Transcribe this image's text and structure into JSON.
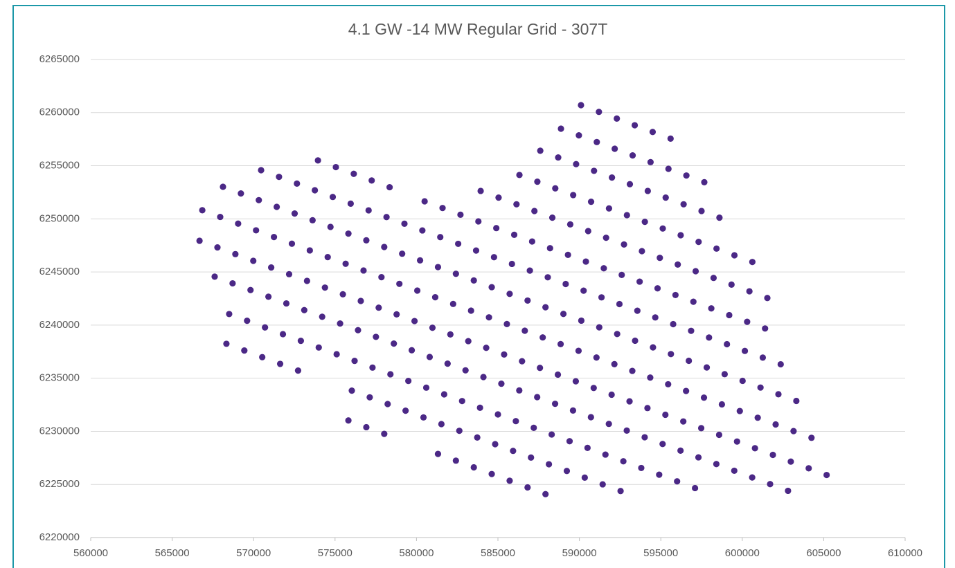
{
  "chart_data": {
    "type": "scatter",
    "title": "4.1 GW -14 MW Regular Grid - 307T",
    "color": "#4b2886",
    "grid": true,
    "xlim": [
      560000,
      610000
    ],
    "xticks": [
      560000,
      565000,
      570000,
      575000,
      580000,
      585000,
      590000,
      595000,
      600000,
      605000,
      610000
    ],
    "ylim": [
      6220000,
      6265000
    ],
    "yticks": [
      6220000,
      6225000,
      6230000,
      6235000,
      6240000,
      6245000,
      6250000,
      6255000,
      6260000,
      6265000
    ],
    "x": [
      590100,
      591200,
      592300,
      593400,
      594500,
      595600,
      588870,
      589970,
      591070,
      592170,
      593270,
      594370,
      595470,
      596570,
      597670,
      587600,
      588700,
      589800,
      590900,
      592000,
      593100,
      594200,
      595300,
      596400,
      597500,
      598600,
      586320,
      587420,
      588520,
      589620,
      590720,
      591820,
      592920,
      594020,
      595120,
      596220,
      597320,
      598420,
      599520,
      600620,
      583940,
      585040,
      586140,
      587240,
      588340,
      589440,
      590540,
      591640,
      592740,
      593840,
      594940,
      596040,
      597140,
      598240,
      599340,
      600440,
      601540,
      580500,
      581600,
      582700,
      583800,
      584900,
      586000,
      587100,
      588200,
      589300,
      590400,
      591500,
      592600,
      593700,
      594800,
      595900,
      597000,
      598100,
      599200,
      600300,
      601400,
      573950,
      575050,
      576150,
      577250,
      578350,
      570460,
      571560,
      572660,
      573760,
      574860,
      575960,
      577060,
      578160,
      579260,
      580360,
      581460,
      582560,
      583660,
      584760,
      585860,
      586960,
      588060,
      589160,
      590260,
      591360,
      592460,
      593560,
      594660,
      595760,
      596860,
      597960,
      599060,
      600160,
      601260,
      602360,
      568120,
      569220,
      570320,
      571420,
      572520,
      573620,
      574720,
      575820,
      576920,
      578020,
      579120,
      580220,
      581320,
      582420,
      583520,
      584620,
      585720,
      586820,
      587920,
      589020,
      590120,
      591220,
      592320,
      593420,
      594520,
      595620,
      596720,
      597820,
      598920,
      600020,
      601120,
      602220,
      603320,
      566850,
      567950,
      569050,
      570150,
      571250,
      572350,
      573450,
      574550,
      575650,
      576750,
      577850,
      578950,
      580050,
      581150,
      582250,
      583350,
      584450,
      585550,
      586650,
      587750,
      588850,
      589950,
      591050,
      592150,
      593250,
      594350,
      595450,
      596550,
      597650,
      598750,
      599850,
      600950,
      602050,
      603150,
      604250,
      566680,
      567780,
      568880,
      569980,
      571080,
      572180,
      573280,
      574380,
      575480,
      576580,
      577680,
      578780,
      579880,
      580980,
      582080,
      583180,
      584280,
      585380,
      586480,
      587580,
      588680,
      589780,
      590880,
      591980,
      593080,
      594180,
      595280,
      596380,
      597480,
      598580,
      599680,
      600780,
      601880,
      602980,
      604080,
      605180,
      567610,
      568710,
      569810,
      570910,
      572010,
      573110,
      574210,
      575310,
      576410,
      577510,
      578610,
      579710,
      580810,
      581910,
      583010,
      584110,
      585210,
      586310,
      587410,
      588510,
      589610,
      590710,
      591810,
      592910,
      594010,
      595110,
      596210,
      597310,
      598410,
      599510,
      600610,
      601710,
      602810,
      568500,
      569600,
      570700,
      571800,
      572900,
      574000,
      575100,
      576200,
      577300,
      578400,
      579500,
      580600,
      581700,
      582800,
      583900,
      585000,
      586100,
      587200,
      588300,
      589400,
      590500,
      591600,
      592700,
      593800,
      594900,
      596000,
      597100,
      568330,
      569430,
      570530,
      571630,
      572730,
      576030,
      577130,
      578230,
      579330,
      580430,
      581530,
      582630,
      583730,
      584830,
      585930,
      587030,
      588130,
      589230,
      590330,
      591430,
      592530,
      575820,
      576920,
      578020,
      581320,
      582420,
      583520,
      584620,
      585720,
      586820,
      587920
    ],
    "values": [
      6260700,
      6260070,
      6259440,
      6258810,
      6258180,
      6257550,
      6258490,
      6257860,
      6257230,
      6256600,
      6255970,
      6255340,
      6254710,
      6254080,
      6253450,
      6256410,
      6255780,
      6255150,
      6254520,
      6253890,
      6253260,
      6252630,
      6252000,
      6251370,
      6250740,
      6250110,
      6254130,
      6253500,
      6252870,
      6252240,
      6251610,
      6250980,
      6250350,
      6249720,
      6249090,
      6248460,
      6247830,
      6247200,
      6246570,
      6245940,
      6252630,
      6252000,
      6251370,
      6250740,
      6250110,
      6249480,
      6248850,
      6248220,
      6247590,
      6246960,
      6246330,
      6245700,
      6245070,
      6244440,
      6243810,
      6243180,
      6242550,
      6251650,
      6251020,
      6250390,
      6249760,
      6249130,
      6248500,
      6247870,
      6247240,
      6246610,
      6245980,
      6245350,
      6244720,
      6244090,
      6243460,
      6242830,
      6242200,
      6241570,
      6240940,
      6240310,
      6239680,
      6255500,
      6254870,
      6254240,
      6253610,
      6252980,
      6254580,
      6253950,
      6253320,
      6252690,
      6252060,
      6251430,
      6250800,
      6250170,
      6249540,
      6248910,
      6248280,
      6247650,
      6247020,
      6246390,
      6245760,
      6245130,
      6244500,
      6243870,
      6243240,
      6242610,
      6241980,
      6241350,
      6240720,
      6240090,
      6239460,
      6238830,
      6238200,
      6237570,
      6236940,
      6236310,
      6253020,
      6252390,
      6251760,
      6251130,
      6250500,
      6249870,
      6249240,
      6248610,
      6247980,
      6247350,
      6246720,
      6246090,
      6245460,
      6244830,
      6244200,
      6243570,
      6242940,
      6242310,
      6241680,
      6241050,
      6240420,
      6239790,
      6239160,
      6238530,
      6237900,
      6237270,
      6236640,
      6236010,
      6235380,
      6234750,
      6234120,
      6233490,
      6232860,
      6250810,
      6250180,
      6249550,
      6248920,
      6248290,
      6247660,
      6247030,
      6246400,
      6245770,
      6245140,
      6244510,
      6243880,
      6243250,
      6242620,
      6241990,
      6241360,
      6240730,
      6240100,
      6239470,
      6238840,
      6238210,
      6237580,
      6236950,
      6236320,
      6235690,
      6235060,
      6234430,
      6233800,
      6233170,
      6232540,
      6231910,
      6231280,
      6230650,
      6230020,
      6229390,
      6247940,
      6247310,
      6246680,
      6246050,
      6245420,
      6244790,
      6244160,
      6243530,
      6242900,
      6242270,
      6241640,
      6241010,
      6240380,
      6239750,
      6239120,
      6238490,
      6237860,
      6237230,
      6236600,
      6235970,
      6235340,
      6234710,
      6234080,
      6233450,
      6232820,
      6232190,
      6231560,
      6230930,
      6230300,
      6229670,
      6229040,
      6228410,
      6227780,
      6227150,
      6226520,
      6225890,
      6244560,
      6243930,
      6243300,
      6242670,
      6242040,
      6241410,
      6240780,
      6240150,
      6239520,
      6238890,
      6238260,
      6237630,
      6237000,
      6236370,
      6235740,
      6235110,
      6234480,
      6233850,
      6233220,
      6232590,
      6231960,
      6231330,
      6230700,
      6230070,
      6229440,
      6228810,
      6228180,
      6227550,
      6226920,
      6226290,
      6225660,
      6225030,
      6224400,
      6241040,
      6240410,
      6239780,
      6239150,
      6238520,
      6237890,
      6237260,
      6236630,
      6236000,
      6235370,
      6234740,
      6234110,
      6233480,
      6232850,
      6232220,
      6231590,
      6230960,
      6230330,
      6229700,
      6229070,
      6228440,
      6227810,
      6227180,
      6226550,
      6225920,
      6225290,
      6224660,
      6238240,
      6237610,
      6236980,
      6236350,
      6235720,
      6233830,
      6233200,
      6232570,
      6231940,
      6231310,
      6230680,
      6230050,
      6229420,
      6228790,
      6228160,
      6227530,
      6226900,
      6226270,
      6225640,
      6225010,
      6224380,
      6231020,
      6230390,
      6229760,
      6227870,
      6227240,
      6226610,
      6225980,
      6225350,
      6224720,
      6224090
    ]
  }
}
